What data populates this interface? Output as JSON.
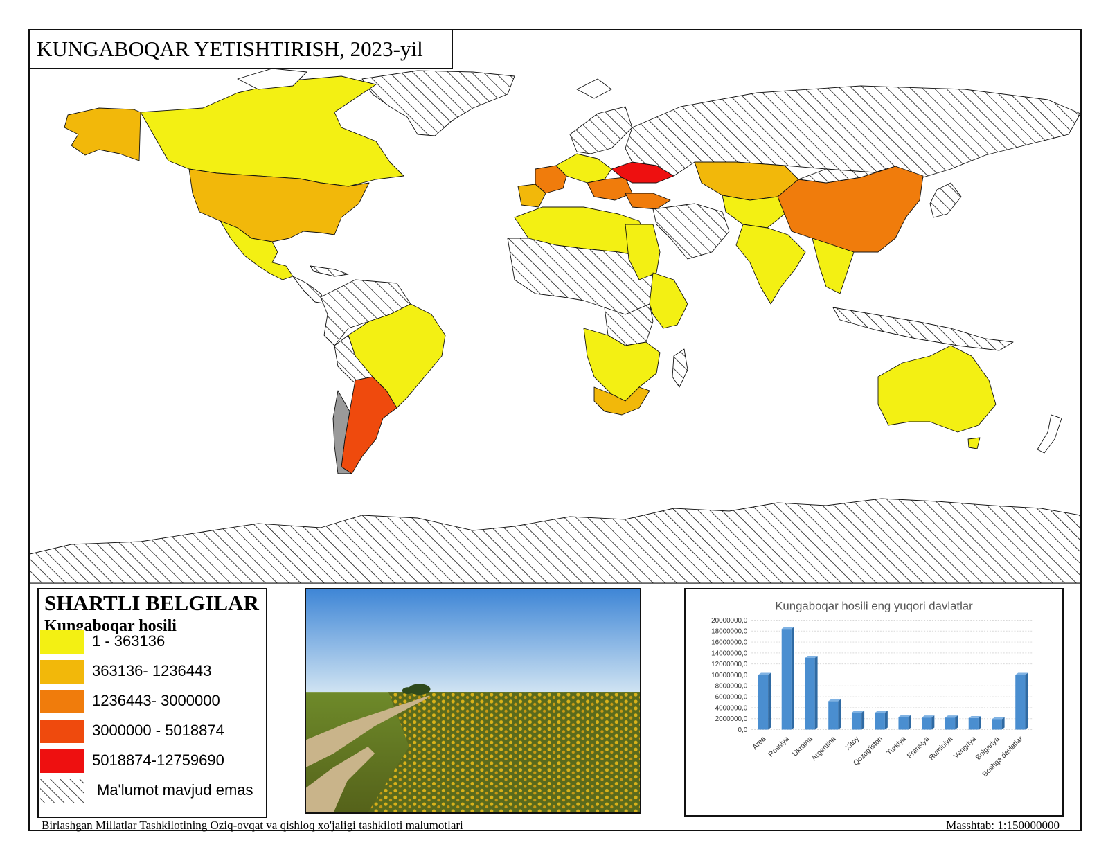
{
  "title": "KUNGABOQAR YETISHTIRISH, 2023-yil",
  "legend": {
    "heading": "SHARTLI BELGILAR",
    "subheading": "Kungaboqar hosili",
    "classes": [
      {
        "label": "1 - 363136",
        "color": "#f3f013"
      },
      {
        "label": "363136- 1236443",
        "color": "#f2b80a"
      },
      {
        "label": "1236443- 3000000",
        "color": "#f07c0c"
      },
      {
        "label": "3000000 - 5018874",
        "color": "#ef4a0d"
      },
      {
        "label": "5018874-12759690",
        "color": "#ee1010"
      }
    ],
    "no_data_label": "Ma'lumot mavjud emas"
  },
  "map": {
    "no_data_pattern": "diagonal-hatch",
    "colors": {
      "class1": "#f3f013",
      "class2": "#f2b80a",
      "class3": "#f07c0c",
      "class4": "#ef4a0d",
      "class5": "#ee1010",
      "hatch_line": "#111111",
      "border": "#111111"
    }
  },
  "photo": {
    "subject": "sunflower-field",
    "colors": {
      "sky_top": "#3f86d6",
      "sky_bottom": "#cfe3f2",
      "field": "#6e7f22",
      "flowers": "#d9b21a",
      "path": "#c9b48a"
    }
  },
  "chart_data": {
    "type": "bar",
    "title": "Kungaboqar hosili eng yuqori davlatlar",
    "categories": [
      "Area",
      "Rossiya",
      "Ukraina",
      "Argentina",
      "Xitoy",
      "Qozog'iston",
      "Turkiya",
      "Fransiya",
      "Ruminiya",
      "Vengriya",
      "Bolgariya",
      "Boshqa davlatlar"
    ],
    "values": [
      10000000,
      18400000,
      13100000,
      5200000,
      3100000,
      3100000,
      2300000,
      2200000,
      2200000,
      2100000,
      1900000,
      10000000
    ],
    "y_ticks": [
      "0,0",
      "2000000,0",
      "4000000,0",
      "6000000,0",
      "8000000,0",
      "10000000,0",
      "12000000,0",
      "14000000,0",
      "16000000,0",
      "18000000,0",
      "20000000,0"
    ],
    "ylim": [
      0,
      20000000
    ],
    "grid": true,
    "bar_color": "#4a8ed0"
  },
  "footer": {
    "source": "Birlashgan Millatlar Tashkilotining Oziq-ovqat va qishloq xo'jaligi tashkiloti malumotlari",
    "scale": "Masshtab: 1:150000000"
  }
}
